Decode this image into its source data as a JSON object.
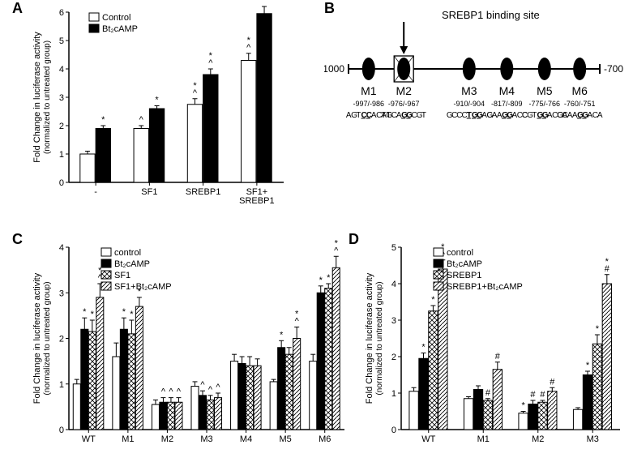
{
  "colors": {
    "bg": "#ffffff",
    "ink": "#000000",
    "fill_white": "#ffffff",
    "fill_black": "#000000",
    "fill_cross": "#ffffff",
    "fill_hatch": "#ffffff"
  },
  "panelA": {
    "label": "A",
    "type": "bar",
    "ylabel_line1": "Fold Change in luciferase activity",
    "ylabel_line2": "(normalized to untreated group)",
    "ylim": [
      0,
      6
    ],
    "ytick_step": 1,
    "legend": [
      {
        "label": "Control",
        "fill": "white"
      },
      {
        "label": "Bt₂cAMP",
        "fill": "black"
      }
    ],
    "categories": [
      "-",
      "SF1",
      "SREBP1",
      "SF1+\nSREBP1"
    ],
    "series": [
      {
        "name": "Control",
        "fill": "white",
        "values": [
          1.0,
          1.9,
          2.75,
          4.3
        ],
        "err": [
          0.1,
          0.1,
          0.2,
          0.25
        ],
        "marks": [
          [
            ""
          ],
          [
            "^"
          ],
          [
            "^",
            "*"
          ],
          [
            "^",
            "*"
          ]
        ]
      },
      {
        "name": "Bt2cAMP",
        "fill": "black",
        "values": [
          1.9,
          2.6,
          3.8,
          5.95
        ],
        "err": [
          0.1,
          0.1,
          0.2,
          0.25
        ],
        "marks": [
          [
            "*"
          ],
          [
            "*"
          ],
          [
            "^",
            "*"
          ],
          [
            "^",
            "*"
          ]
        ]
      }
    ],
    "bar_width": 0.35,
    "group_gap": 0.5
  },
  "panelB": {
    "label": "B",
    "type": "diagram",
    "title": "SREBP1 binding site",
    "line_start": "-1000",
    "line_end": "-700",
    "sites": [
      {
        "name": "M1",
        "pos": "-997/-986",
        "seq": "AGTCCACAG",
        "under": [
          3,
          4
        ],
        "x": 0.08
      },
      {
        "name": "M2",
        "pos": "-976/-967",
        "seq": "TTCAGGCGT",
        "under": [
          4,
          5
        ],
        "x": 0.22,
        "box": true
      },
      {
        "name": "M3",
        "pos": "-910/-904",
        "seq": "GCCCTGGAG",
        "under": [
          4,
          5,
          6
        ],
        "x": 0.48
      },
      {
        "name": "M4",
        "pos": "-817/-809",
        "seq": "CAAGGACC",
        "under": [
          3,
          4
        ],
        "x": 0.63
      },
      {
        "name": "M5",
        "pos": "-775/-766",
        "seq": "CGTGGACGC",
        "under": [
          3,
          4
        ],
        "x": 0.78
      },
      {
        "name": "M6",
        "pos": "-760/-751",
        "seq": "CAAAGGACA",
        "under": [
          4,
          5
        ],
        "x": 0.92
      }
    ]
  },
  "panelC": {
    "label": "C",
    "type": "bar",
    "ylabel_line1": "Fold Change in luciferase activity",
    "ylabel_line2": "(normalized to untreated group)",
    "ylim": [
      0,
      4
    ],
    "ytick_step": 1,
    "legend": [
      {
        "label": "control",
        "fill": "white"
      },
      {
        "label": "Bt₂cAMP",
        "fill": "black"
      },
      {
        "label": "SF1",
        "fill": "cross"
      },
      {
        "label": "SF1+Bt₂cAMP",
        "fill": "hatch"
      }
    ],
    "categories": [
      "WT",
      "M1",
      "M2",
      "M3",
      "M4",
      "M5",
      "M6"
    ],
    "series": [
      {
        "fill": "white",
        "values": [
          1.0,
          1.6,
          0.55,
          0.95,
          1.5,
          1.05,
          1.5
        ],
        "err": [
          0.1,
          0.3,
          0.1,
          0.1,
          0.15,
          0.05,
          0.15
        ],
        "marks": [
          [
            ""
          ],
          [
            ""
          ],
          [
            ""
          ],
          [
            ""
          ],
          [
            ""
          ],
          [
            ""
          ],
          [
            ""
          ]
        ]
      },
      {
        "fill": "black",
        "values": [
          2.2,
          2.2,
          0.6,
          0.75,
          1.45,
          1.8,
          3.0
        ],
        "err": [
          0.25,
          0.25,
          0.1,
          0.1,
          0.15,
          0.15,
          0.15
        ],
        "marks": [
          [
            "*"
          ],
          [
            "*"
          ],
          [
            "^"
          ],
          [
            "^"
          ],
          [
            ""
          ],
          [
            "*"
          ],
          [
            "*"
          ]
        ]
      },
      {
        "fill": "cross",
        "values": [
          2.15,
          2.1,
          0.6,
          0.65,
          1.4,
          1.65,
          3.1
        ],
        "err": [
          0.25,
          0.3,
          0.1,
          0.1,
          0.2,
          0.15,
          0.1
        ],
        "marks": [
          [
            "*"
          ],
          [
            "*"
          ],
          [
            "^"
          ],
          [
            "^"
          ],
          [
            ""
          ],
          [
            ""
          ],
          [
            "*"
          ]
        ]
      },
      {
        "fill": "hatch",
        "values": [
          2.9,
          2.7,
          0.6,
          0.7,
          1.4,
          2.0,
          3.55
        ],
        "err": [
          0.3,
          0.2,
          0.1,
          0.1,
          0.15,
          0.25,
          0.25
        ],
        "marks": [
          [
            "^",
            "*"
          ],
          [
            "*"
          ],
          [
            "^"
          ],
          [
            "^"
          ],
          [
            ""
          ],
          [
            "^",
            "*"
          ],
          [
            "^",
            "*"
          ]
        ]
      }
    ],
    "bar_width": 0.18,
    "group_gap": 0.2
  },
  "panelD": {
    "label": "D",
    "type": "bar",
    "ylabel_line1": "Fold Change in luciferase activity",
    "ylabel_line2": "(normalized to untreated group)",
    "ylim": [
      0,
      5
    ],
    "ytick_step": 1,
    "legend": [
      {
        "label": "control",
        "fill": "white"
      },
      {
        "label": "Bt₂cAMP",
        "fill": "black"
      },
      {
        "label": "SREBP1",
        "fill": "cross"
      },
      {
        "label": "SREBP1+Bt₂cAMP",
        "fill": "hatch"
      }
    ],
    "categories": [
      "WT",
      "M1",
      "M2",
      "M3"
    ],
    "series": [
      {
        "fill": "white",
        "values": [
          1.05,
          0.85,
          0.45,
          0.55
        ],
        "err": [
          0.1,
          0.05,
          0.05,
          0.05
        ],
        "marks": [
          [
            ""
          ],
          [
            ""
          ],
          [
            "*"
          ],
          [
            ""
          ]
        ]
      },
      {
        "fill": "black",
        "values": [
          1.95,
          1.1,
          0.7,
          1.5
        ],
        "err": [
          0.15,
          0.1,
          0.1,
          0.1
        ],
        "marks": [
          [
            "*"
          ],
          [
            ""
          ],
          [
            "#"
          ],
          [
            "*"
          ]
        ]
      },
      {
        "fill": "cross",
        "values": [
          3.25,
          0.8,
          0.75,
          2.35
        ],
        "err": [
          0.15,
          0.05,
          0.05,
          0.25
        ],
        "marks": [
          [
            "*"
          ],
          [
            "#"
          ],
          [
            "#"
          ],
          [
            "*"
          ]
        ]
      },
      {
        "fill": "hatch",
        "values": [
          4.4,
          1.65,
          1.05,
          4.0
        ],
        "err": [
          0.25,
          0.2,
          0.1,
          0.25
        ],
        "marks": [
          [
            "^",
            "*"
          ],
          [
            "#"
          ],
          [
            "#"
          ],
          [
            "#",
            "*"
          ]
        ]
      }
    ],
    "bar_width": 0.18,
    "group_gap": 0.3
  }
}
